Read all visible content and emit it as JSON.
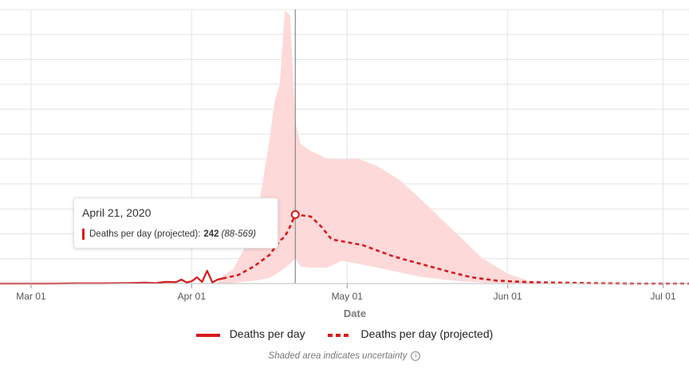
{
  "chart_data": {
    "type": "line",
    "xlabel": "Date",
    "ylabel": "",
    "x_ticks": [
      {
        "label": "Mar 01",
        "date": "2020-03-01"
      },
      {
        "label": "Apr 01",
        "date": "2020-04-01"
      },
      {
        "label": "May 01",
        "date": "2020-05-01"
      },
      {
        "label": "Jun 01",
        "date": "2020-06-01"
      },
      {
        "label": "Jul 01",
        "date": "2020-07-01"
      }
    ],
    "xlim": [
      "2020-02-24",
      "2020-07-06"
    ],
    "ylim": [
      0,
      500
    ],
    "grid": true,
    "series": [
      {
        "name": "Deaths per day",
        "style": "solid",
        "color": "#d7191c",
        "points": [
          [
            "2020-02-24",
            0
          ],
          [
            "2020-03-05",
            0
          ],
          [
            "2020-03-10",
            1
          ],
          [
            "2020-03-15",
            1
          ],
          [
            "2020-03-20",
            2
          ],
          [
            "2020-03-23",
            3
          ],
          [
            "2020-03-25",
            2
          ],
          [
            "2020-03-27",
            6
          ],
          [
            "2020-03-29",
            5
          ],
          [
            "2020-03-30",
            14
          ],
          [
            "2020-03-31",
            4
          ],
          [
            "2020-04-01",
            8
          ],
          [
            "2020-04-02",
            22
          ],
          [
            "2020-04-03",
            6
          ],
          [
            "2020-04-04",
            45
          ],
          [
            "2020-04-05",
            4
          ],
          [
            "2020-04-06",
            14
          ],
          [
            "2020-04-07",
            18
          ]
        ]
      },
      {
        "name": "Deaths per day (projected)",
        "style": "dashed",
        "color": "#d7191c",
        "points": [
          [
            "2020-04-07",
            18
          ],
          [
            "2020-04-10",
            30
          ],
          [
            "2020-04-13",
            60
          ],
          [
            "2020-04-16",
            100
          ],
          [
            "2020-04-18",
            150
          ],
          [
            "2020-04-19",
            165
          ],
          [
            "2020-04-20",
            200
          ],
          [
            "2020-04-21",
            242
          ],
          [
            "2020-04-22",
            240
          ],
          [
            "2020-04-24",
            235
          ],
          [
            "2020-04-26",
            200
          ],
          [
            "2020-04-28",
            155
          ],
          [
            "2020-05-01",
            145
          ],
          [
            "2020-05-04",
            135
          ],
          [
            "2020-05-07",
            115
          ],
          [
            "2020-05-10",
            95
          ],
          [
            "2020-05-13",
            80
          ],
          [
            "2020-05-17",
            60
          ],
          [
            "2020-05-21",
            40
          ],
          [
            "2020-05-25",
            22
          ],
          [
            "2020-05-30",
            10
          ],
          [
            "2020-06-05",
            5
          ],
          [
            "2020-06-15",
            2
          ],
          [
            "2020-06-25",
            0
          ],
          [
            "2020-07-06",
            0
          ]
        ]
      }
    ],
    "uncertainty_band": {
      "points": [
        [
          "2020-04-06",
          0,
          15
        ],
        [
          "2020-04-09",
          2,
          50
        ],
        [
          "2020-04-12",
          8,
          150
        ],
        [
          "2020-04-14",
          12,
          280
        ],
        [
          "2020-04-16",
          20,
          500
        ],
        [
          "2020-04-17",
          30,
          640
        ],
        [
          "2020-04-18",
          42,
          700
        ],
        [
          "2020-04-19",
          55,
          960
        ],
        [
          "2020-04-20",
          70,
          940
        ],
        [
          "2020-04-21",
          88,
          569
        ],
        [
          "2020-04-22",
          60,
          490
        ],
        [
          "2020-04-24",
          55,
          465
        ],
        [
          "2020-04-27",
          55,
          440
        ],
        [
          "2020-04-30",
          80,
          435
        ],
        [
          "2020-05-03",
          70,
          440
        ],
        [
          "2020-05-07",
          55,
          410
        ],
        [
          "2020-05-11",
          40,
          365
        ],
        [
          "2020-05-15",
          25,
          300
        ],
        [
          "2020-05-19",
          15,
          230
        ],
        [
          "2020-05-23",
          8,
          160
        ],
        [
          "2020-05-27",
          4,
          90
        ],
        [
          "2020-06-01",
          1,
          35
        ],
        [
          "2020-06-05",
          0,
          10
        ],
        [
          "2020-06-10",
          0,
          0
        ]
      ]
    },
    "cursor": {
      "date": "2020-04-21",
      "value": 242
    },
    "tooltip": {
      "date": "April 21, 2020",
      "label": "Deaths per day (projected):",
      "value": "242",
      "range": "(88-569)"
    },
    "legend": [
      {
        "label": "Deaths per day",
        "style": "solid"
      },
      {
        "label": "Deaths per day (projected)",
        "style": "dashed"
      }
    ],
    "legend_position": "bottom",
    "note": "Shaded area indicates uncertainty",
    "colors": {
      "line": "#d7191c",
      "band": "#fdd9d9",
      "grid": "#e4e4e4",
      "cursor": "#888888"
    }
  }
}
